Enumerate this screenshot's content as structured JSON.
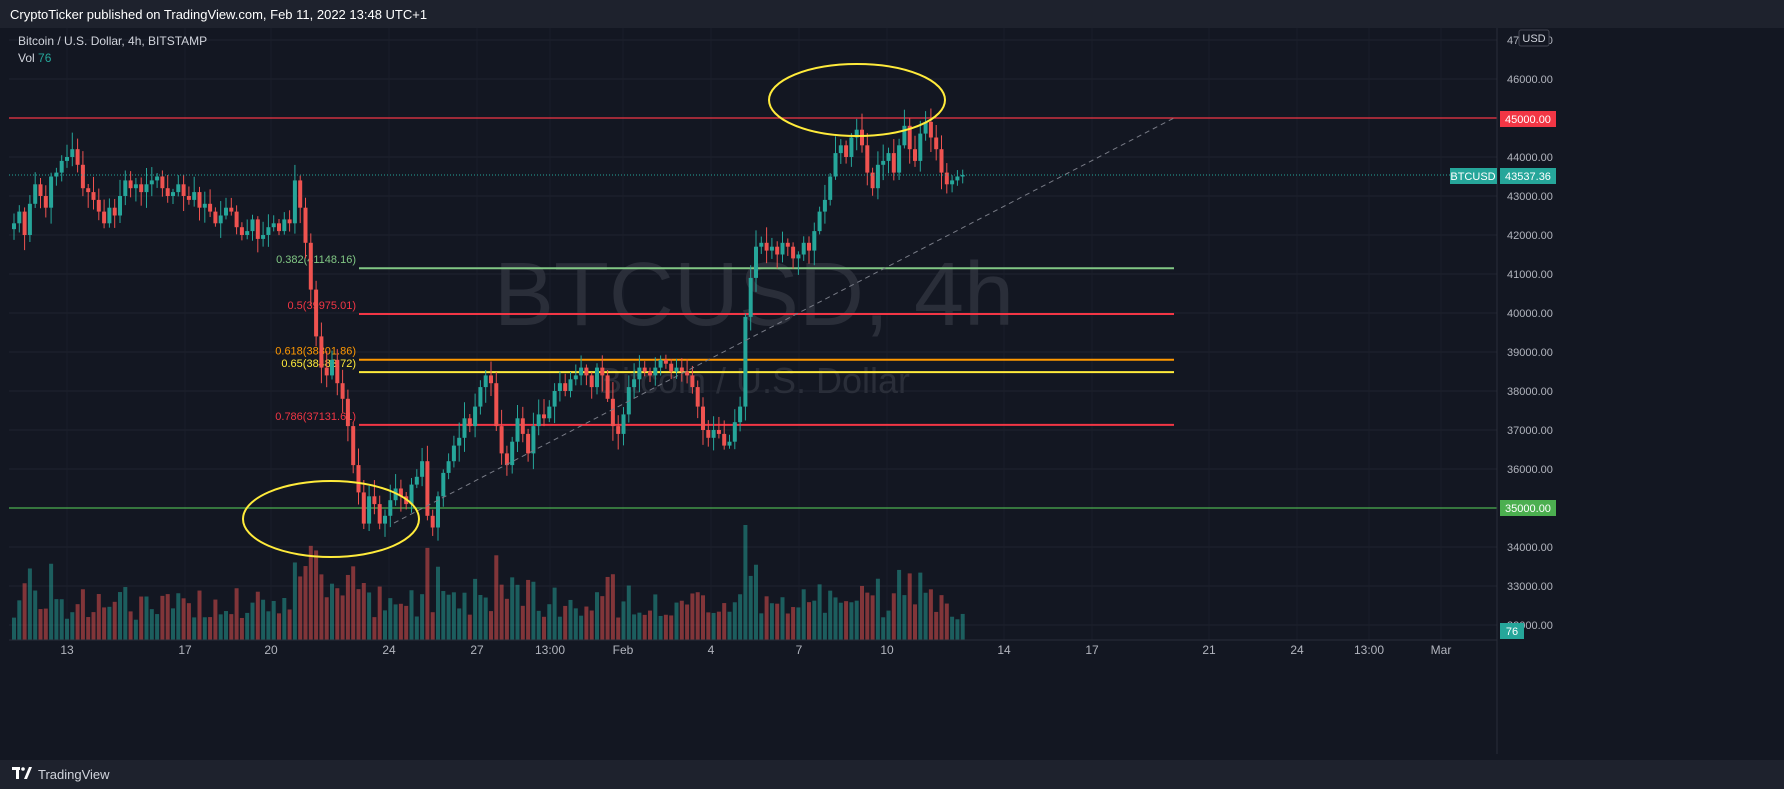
{
  "header": {
    "published_text": "CryptoTicker published on TradingView.com, Feb 11, 2022 13:48 UTC+1"
  },
  "legend": {
    "symbol_line": "Bitcoin / U.S. Dollar, 4h, BITSTAMP",
    "vol_label": "Vol",
    "vol_value": "76"
  },
  "watermark": {
    "main": "BTCUSD, 4h",
    "sub": "Bitcoin / U.S. Dollar"
  },
  "footer": {
    "brand": "TradingView"
  },
  "colors": {
    "background": "#131722",
    "up": "#26a69a",
    "down": "#ef5350",
    "red_line": "#f23645",
    "green_line": "#4caf50",
    "fib_0382": "#81c784",
    "fib_05": "#f23645",
    "fib_0618": "#ff9800",
    "fib_065": "#ffeb3b",
    "fib_0786": "#f23645",
    "ellipse": "#ffeb3b"
  },
  "chart_data": {
    "type": "candlestick",
    "symbol": "BTCUSD",
    "timeframe": "4h",
    "exchange": "BITSTAMP",
    "ylim": [
      31500,
      47300
    ],
    "y_axis_unit": "USD",
    "y_ticks": [
      "47000.00",
      "46000.00",
      "45000.00",
      "44000.00",
      "43000.00",
      "42000.00",
      "41000.00",
      "40000.00",
      "39000.00",
      "38000.00",
      "37000.00",
      "36000.00",
      "35000.00",
      "34000.00",
      "33000.00",
      "32000.00"
    ],
    "x_ticks": [
      "13",
      "17",
      "20",
      "24",
      "27",
      "13:00",
      "Feb",
      "4",
      "7",
      "10",
      "14",
      "17",
      "21",
      "24",
      "13:00",
      "Mar"
    ],
    "current_price": {
      "label": "BTCUSD",
      "value": "43537.36"
    },
    "volume_badge": "76",
    "horizontal_levels": [
      {
        "price": 45000,
        "label": "45000.00",
        "color": "#f23645"
      },
      {
        "price": 35000,
        "label": "35000.00",
        "color": "#4caf50"
      }
    ],
    "fib_levels": [
      {
        "ratio": "0.382",
        "price": 41148.16,
        "label": "0.382(41148.16)",
        "color": "#81c784"
      },
      {
        "ratio": "0.5",
        "price": 39975.01,
        "label": "0.5(39975.01)",
        "color": "#f23645"
      },
      {
        "ratio": "0.618",
        "price": 38801.86,
        "label": "0.618(38801.86)",
        "color": "#ff9800"
      },
      {
        "ratio": "0.65",
        "price": 38483.72,
        "label": "0.65(38483.72)",
        "color": "#ffeb3b"
      },
      {
        "ratio": "0.786",
        "price": 37131.61,
        "label": "0.786(37131.61)",
        "color": "#f23645"
      }
    ],
    "closes": [
      42300,
      42600,
      42000,
      42800,
      43300,
      43000,
      42700,
      43500,
      43600,
      43900,
      44000,
      44200,
      43800,
      43200,
      43100,
      42900,
      42600,
      42300,
      42700,
      42500,
      43000,
      43400,
      43200,
      43300,
      43100,
      43300,
      43400,
      43500,
      43200,
      43000,
      43100,
      43300,
      43000,
      42900,
      43100,
      42700,
      42800,
      42600,
      42300,
      42500,
      42700,
      42600,
      42200,
      42000,
      42100,
      42400,
      41900,
      42000,
      42200,
      42300,
      42100,
      42400,
      42300,
      43400,
      42700,
      41800,
      40600,
      39400,
      38600,
      38400,
      38800,
      38200,
      37800,
      37100,
      36100,
      35400,
      34600,
      35300,
      35100,
      34600,
      34800,
      35200,
      35500,
      35300,
      35100,
      35600,
      35800,
      36200,
      34800,
      34500,
      35300,
      35900,
      36200,
      36600,
      36800,
      37300,
      37100,
      37600,
      38100,
      38400,
      38200,
      37100,
      36400,
      36100,
      36700,
      37300,
      36900,
      36400,
      37100,
      37400,
      37300,
      37600,
      38000,
      38200,
      38000,
      38300,
      38400,
      38600,
      38400,
      38100,
      38600,
      38400,
      37800,
      37100,
      36900,
      37400,
      38100,
      38300,
      38600,
      38500,
      38400,
      38600,
      38800,
      38700,
      38500,
      38600,
      38500,
      38400,
      38100,
      37600,
      37000,
      36800,
      37000,
      36900,
      36600,
      36700,
      37200,
      37600,
      39900,
      40900,
      41700,
      41800,
      41600,
      41700,
      41500,
      41800,
      41700,
      41400,
      41500,
      41800,
      41600,
      42100,
      42600,
      42900,
      43500,
      44100,
      44300,
      44000,
      44500,
      44700,
      44300,
      43600,
      43200,
      43800,
      43900,
      44100,
      43600,
      44300,
      44800,
      44200,
      43900,
      44600,
      44900,
      44500,
      44200,
      43600,
      43300,
      43400,
      43500,
      43537
    ]
  }
}
